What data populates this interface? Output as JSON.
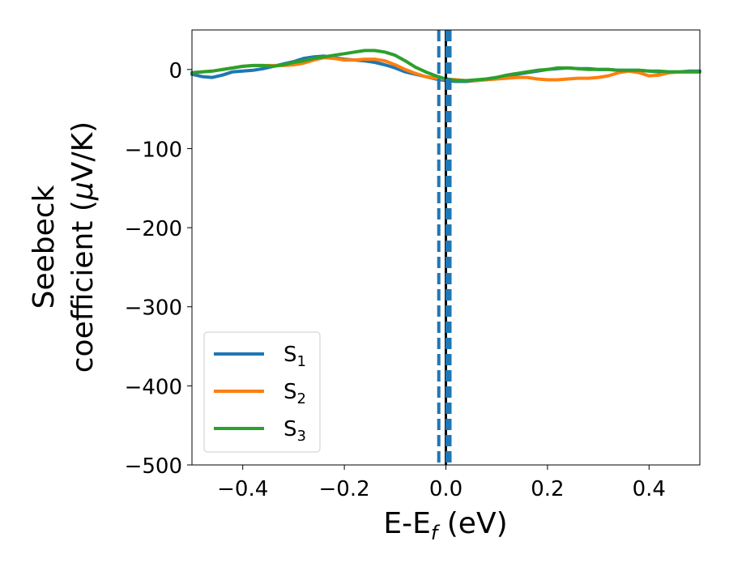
{
  "chart_data": {
    "type": "line",
    "title": "",
    "xlabel": {
      "main": "E-E",
      "sub": "f",
      "unit": " (eV)"
    },
    "ylabel": {
      "line1": "Seebeck",
      "line2": "coefficient  (",
      "mu": "μ",
      "unit": "V/K)"
    },
    "xlim": [
      -0.5,
      0.5
    ],
    "ylim": [
      -500,
      50
    ],
    "xticks": [
      -0.4,
      -0.2,
      0.0,
      0.2,
      0.4
    ],
    "xtick_labels": [
      "−0.4",
      "−0.2",
      "0.0",
      "0.2",
      "0.4"
    ],
    "yticks": [
      0,
      -100,
      -200,
      -300,
      -400,
      -500
    ],
    "ytick_labels": [
      "0",
      "−100",
      "−200",
      "−300",
      "−400",
      "−500"
    ],
    "grid": false,
    "legend_position": "lower-left",
    "series": [
      {
        "name": "S",
        "sub": "1",
        "color": "#1f77b4",
        "x": [
          -0.5,
          -0.48,
          -0.46,
          -0.44,
          -0.42,
          -0.4,
          -0.38,
          -0.36,
          -0.34,
          -0.32,
          -0.3,
          -0.28,
          -0.26,
          -0.24,
          -0.22,
          -0.2,
          -0.18,
          -0.16,
          -0.14,
          -0.12,
          -0.1,
          -0.08,
          -0.06,
          -0.04,
          -0.02,
          0.0,
          0.02,
          0.04,
          0.06,
          0.08,
          0.1,
          0.12,
          0.14,
          0.16,
          0.18,
          0.2,
          0.22,
          0.24,
          0.26,
          0.28,
          0.3,
          0.32,
          0.34,
          0.36,
          0.38,
          0.4,
          0.42,
          0.44,
          0.46,
          0.48,
          0.5
        ],
        "y": [
          -6,
          -9,
          -10,
          -7,
          -3,
          -2,
          -1,
          1,
          4,
          7,
          10,
          14,
          16,
          17,
          15,
          13,
          12,
          11,
          9,
          6,
          2,
          -3,
          -6,
          -9,
          -12,
          -14,
          -15,
          -15,
          -14,
          -12,
          -10,
          -8,
          -6,
          -4,
          -2,
          0,
          1,
          2,
          1,
          1,
          0,
          0,
          -1,
          -1,
          -1,
          -2,
          -3,
          -3,
          -3,
          -2,
          -2
        ]
      },
      {
        "name": "S",
        "sub": "2",
        "color": "#ff7f0e",
        "x": [
          -0.5,
          -0.48,
          -0.46,
          -0.44,
          -0.42,
          -0.4,
          -0.38,
          -0.36,
          -0.34,
          -0.32,
          -0.3,
          -0.28,
          -0.26,
          -0.24,
          -0.22,
          -0.2,
          -0.18,
          -0.16,
          -0.14,
          -0.12,
          -0.1,
          -0.08,
          -0.06,
          -0.04,
          -0.02,
          0.0,
          0.02,
          0.04,
          0.06,
          0.08,
          0.1,
          0.12,
          0.14,
          0.16,
          0.18,
          0.2,
          0.22,
          0.24,
          0.26,
          0.28,
          0.3,
          0.32,
          0.34,
          0.36,
          0.38,
          0.4,
          0.42,
          0.44,
          0.46,
          0.48,
          0.5
        ],
        "y": [
          -4,
          -3,
          -2,
          0,
          2,
          4,
          5,
          5,
          5,
          5,
          6,
          8,
          12,
          15,
          14,
          12,
          12,
          13,
          13,
          11,
          6,
          0,
          -5,
          -9,
          -11,
          -12,
          -13,
          -14,
          -14,
          -13,
          -12,
          -11,
          -10,
          -10,
          -12,
          -13,
          -13,
          -12,
          -11,
          -11,
          -10,
          -8,
          -4,
          -2,
          -4,
          -8,
          -7,
          -4,
          -3,
          -3,
          -3
        ]
      },
      {
        "name": "S",
        "sub": "3",
        "color": "#2ca02c",
        "x": [
          -0.5,
          -0.48,
          -0.46,
          -0.44,
          -0.42,
          -0.4,
          -0.38,
          -0.36,
          -0.34,
          -0.32,
          -0.3,
          -0.28,
          -0.26,
          -0.24,
          -0.22,
          -0.2,
          -0.18,
          -0.16,
          -0.14,
          -0.12,
          -0.1,
          -0.08,
          -0.06,
          -0.04,
          -0.02,
          0.0,
          0.02,
          0.04,
          0.06,
          0.08,
          0.1,
          0.12,
          0.14,
          0.16,
          0.18,
          0.2,
          0.22,
          0.24,
          0.26,
          0.28,
          0.3,
          0.32,
          0.34,
          0.36,
          0.38,
          0.4,
          0.42,
          0.44,
          0.46,
          0.48,
          0.5
        ],
        "y": [
          -4,
          -3,
          -2,
          0,
          2,
          4,
          5,
          5,
          4,
          6,
          9,
          11,
          14,
          16,
          18,
          20,
          22,
          24,
          24,
          22,
          18,
          11,
          3,
          -3,
          -8,
          -12,
          -14,
          -14,
          -13,
          -12,
          -10,
          -7,
          -5,
          -3,
          -1,
          0,
          2,
          2,
          1,
          0,
          0,
          0,
          -1,
          -1,
          -1,
          -2,
          -2,
          -3,
          -3,
          -3,
          -3
        ]
      }
    ],
    "vlines": [
      {
        "x": 0.0,
        "style": "solid",
        "color": "#000000"
      },
      {
        "x": -0.014,
        "style": "dashed",
        "color": "#1f77b4"
      },
      {
        "x": 0.002,
        "style": "dashed",
        "color": "#1f77b4"
      },
      {
        "x": 0.008,
        "style": "dashed",
        "color": "#1f77b4"
      }
    ]
  }
}
